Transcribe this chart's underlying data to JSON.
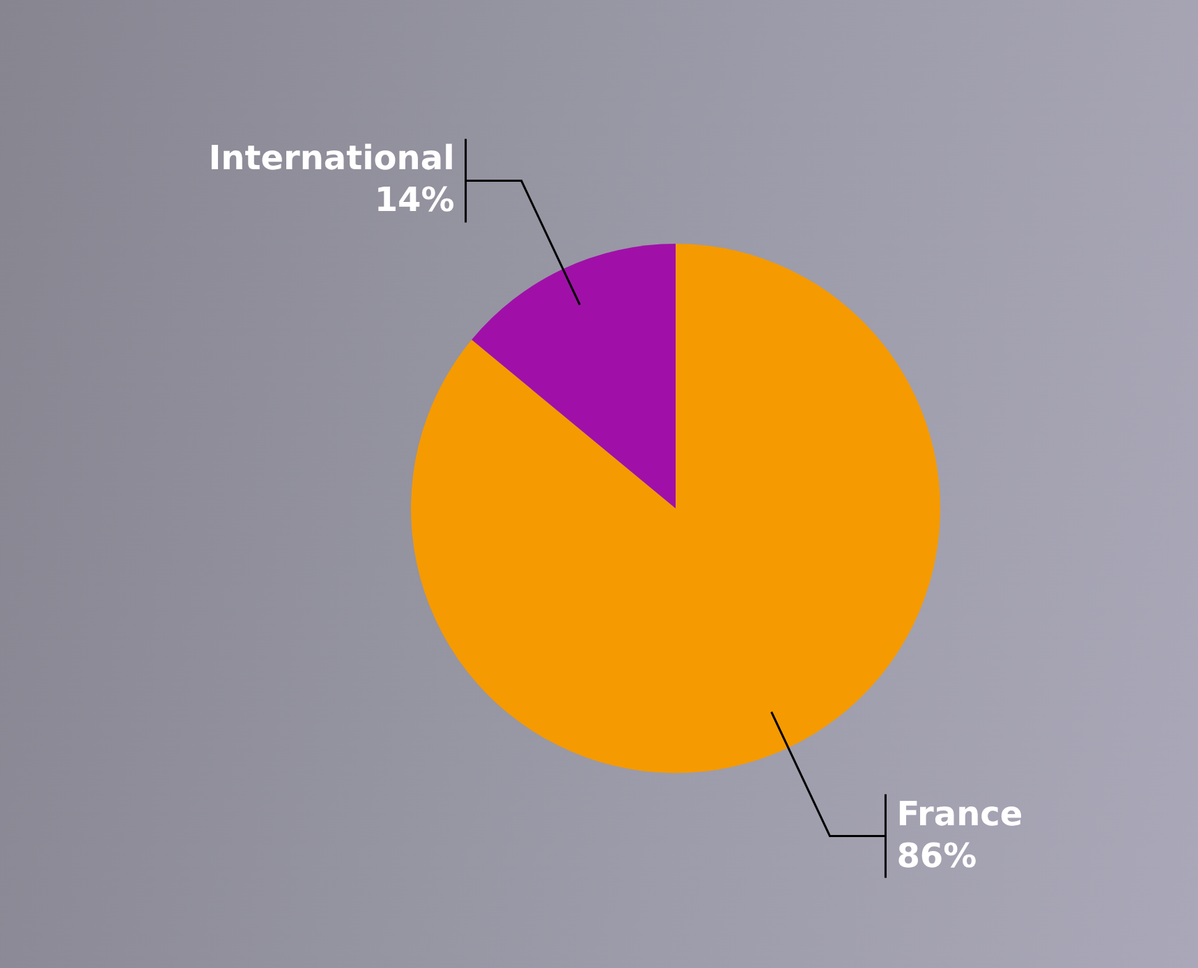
{
  "chart_data": {
    "type": "pie",
    "categories": [
      "France",
      "International"
    ],
    "values": [
      86,
      14
    ],
    "value_labels": [
      "86%",
      "14%"
    ],
    "colors": [
      "#f59a00",
      "#a010a8"
    ]
  }
}
